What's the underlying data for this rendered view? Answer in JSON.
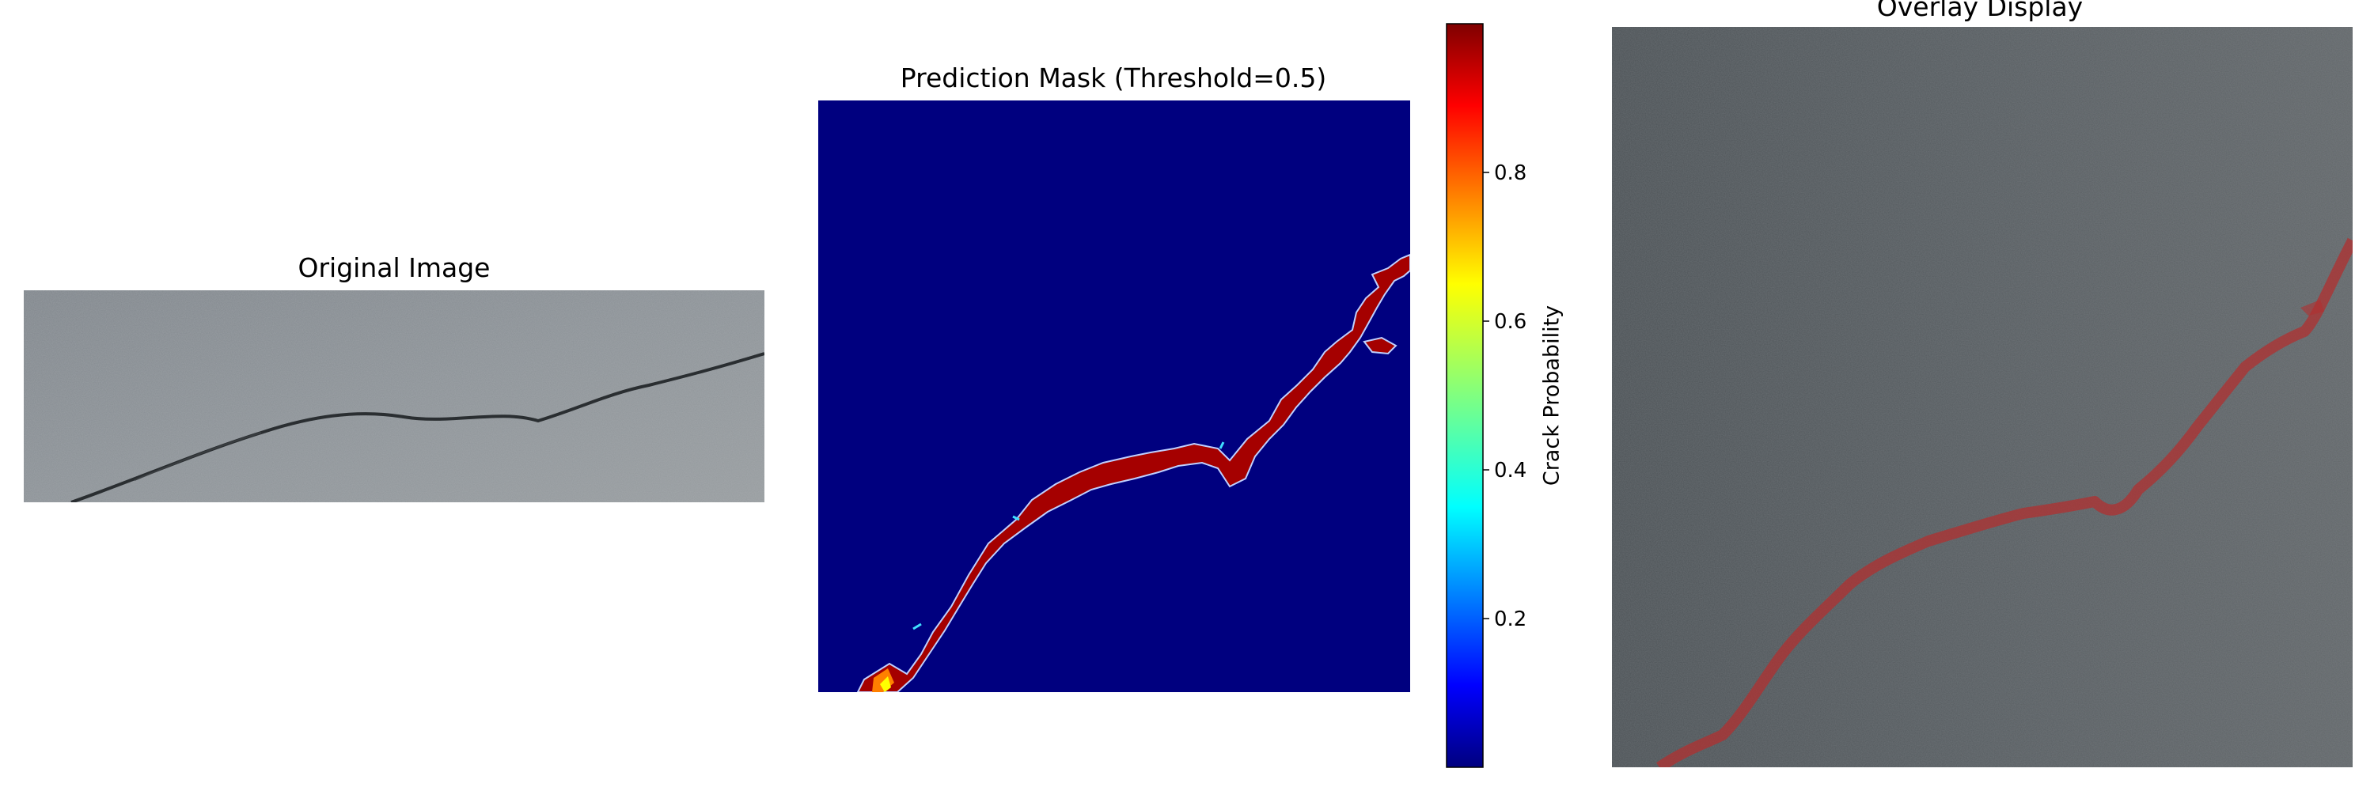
{
  "figure": {
    "panels": {
      "original": {
        "title": "Original Image"
      },
      "mask": {
        "title": "Prediction Mask (Threshold=0.5)"
      },
      "overlay": {
        "title": "Overlay Display"
      }
    }
  },
  "colors": {
    "background": "#ffffff",
    "mask_background": "#00007f",
    "crack_fill": "#a50000",
    "crack_edge": "#c0d0ff",
    "asphalt_light": "#8e949a",
    "asphalt_dark": "#4a5054",
    "overlay_crack": "#b03030"
  },
  "chart_data": [
    {
      "type": "image",
      "title": "Original Image",
      "description_source": "photo of asphalt with a crack"
    },
    {
      "type": "heatmap",
      "title": "Prediction Mask (Threshold=0.5)",
      "colormap": "jet",
      "colorbar": {
        "label": "Crack Probability",
        "range": [
          0,
          1
        ],
        "ticks": [
          0.2,
          0.4,
          0.6,
          0.8
        ],
        "tick_labels": [
          "0.2",
          "0.4",
          "0.6",
          "0.8"
        ]
      },
      "threshold": 0.5
    },
    {
      "type": "image",
      "title": "Overlay Display"
    }
  ]
}
